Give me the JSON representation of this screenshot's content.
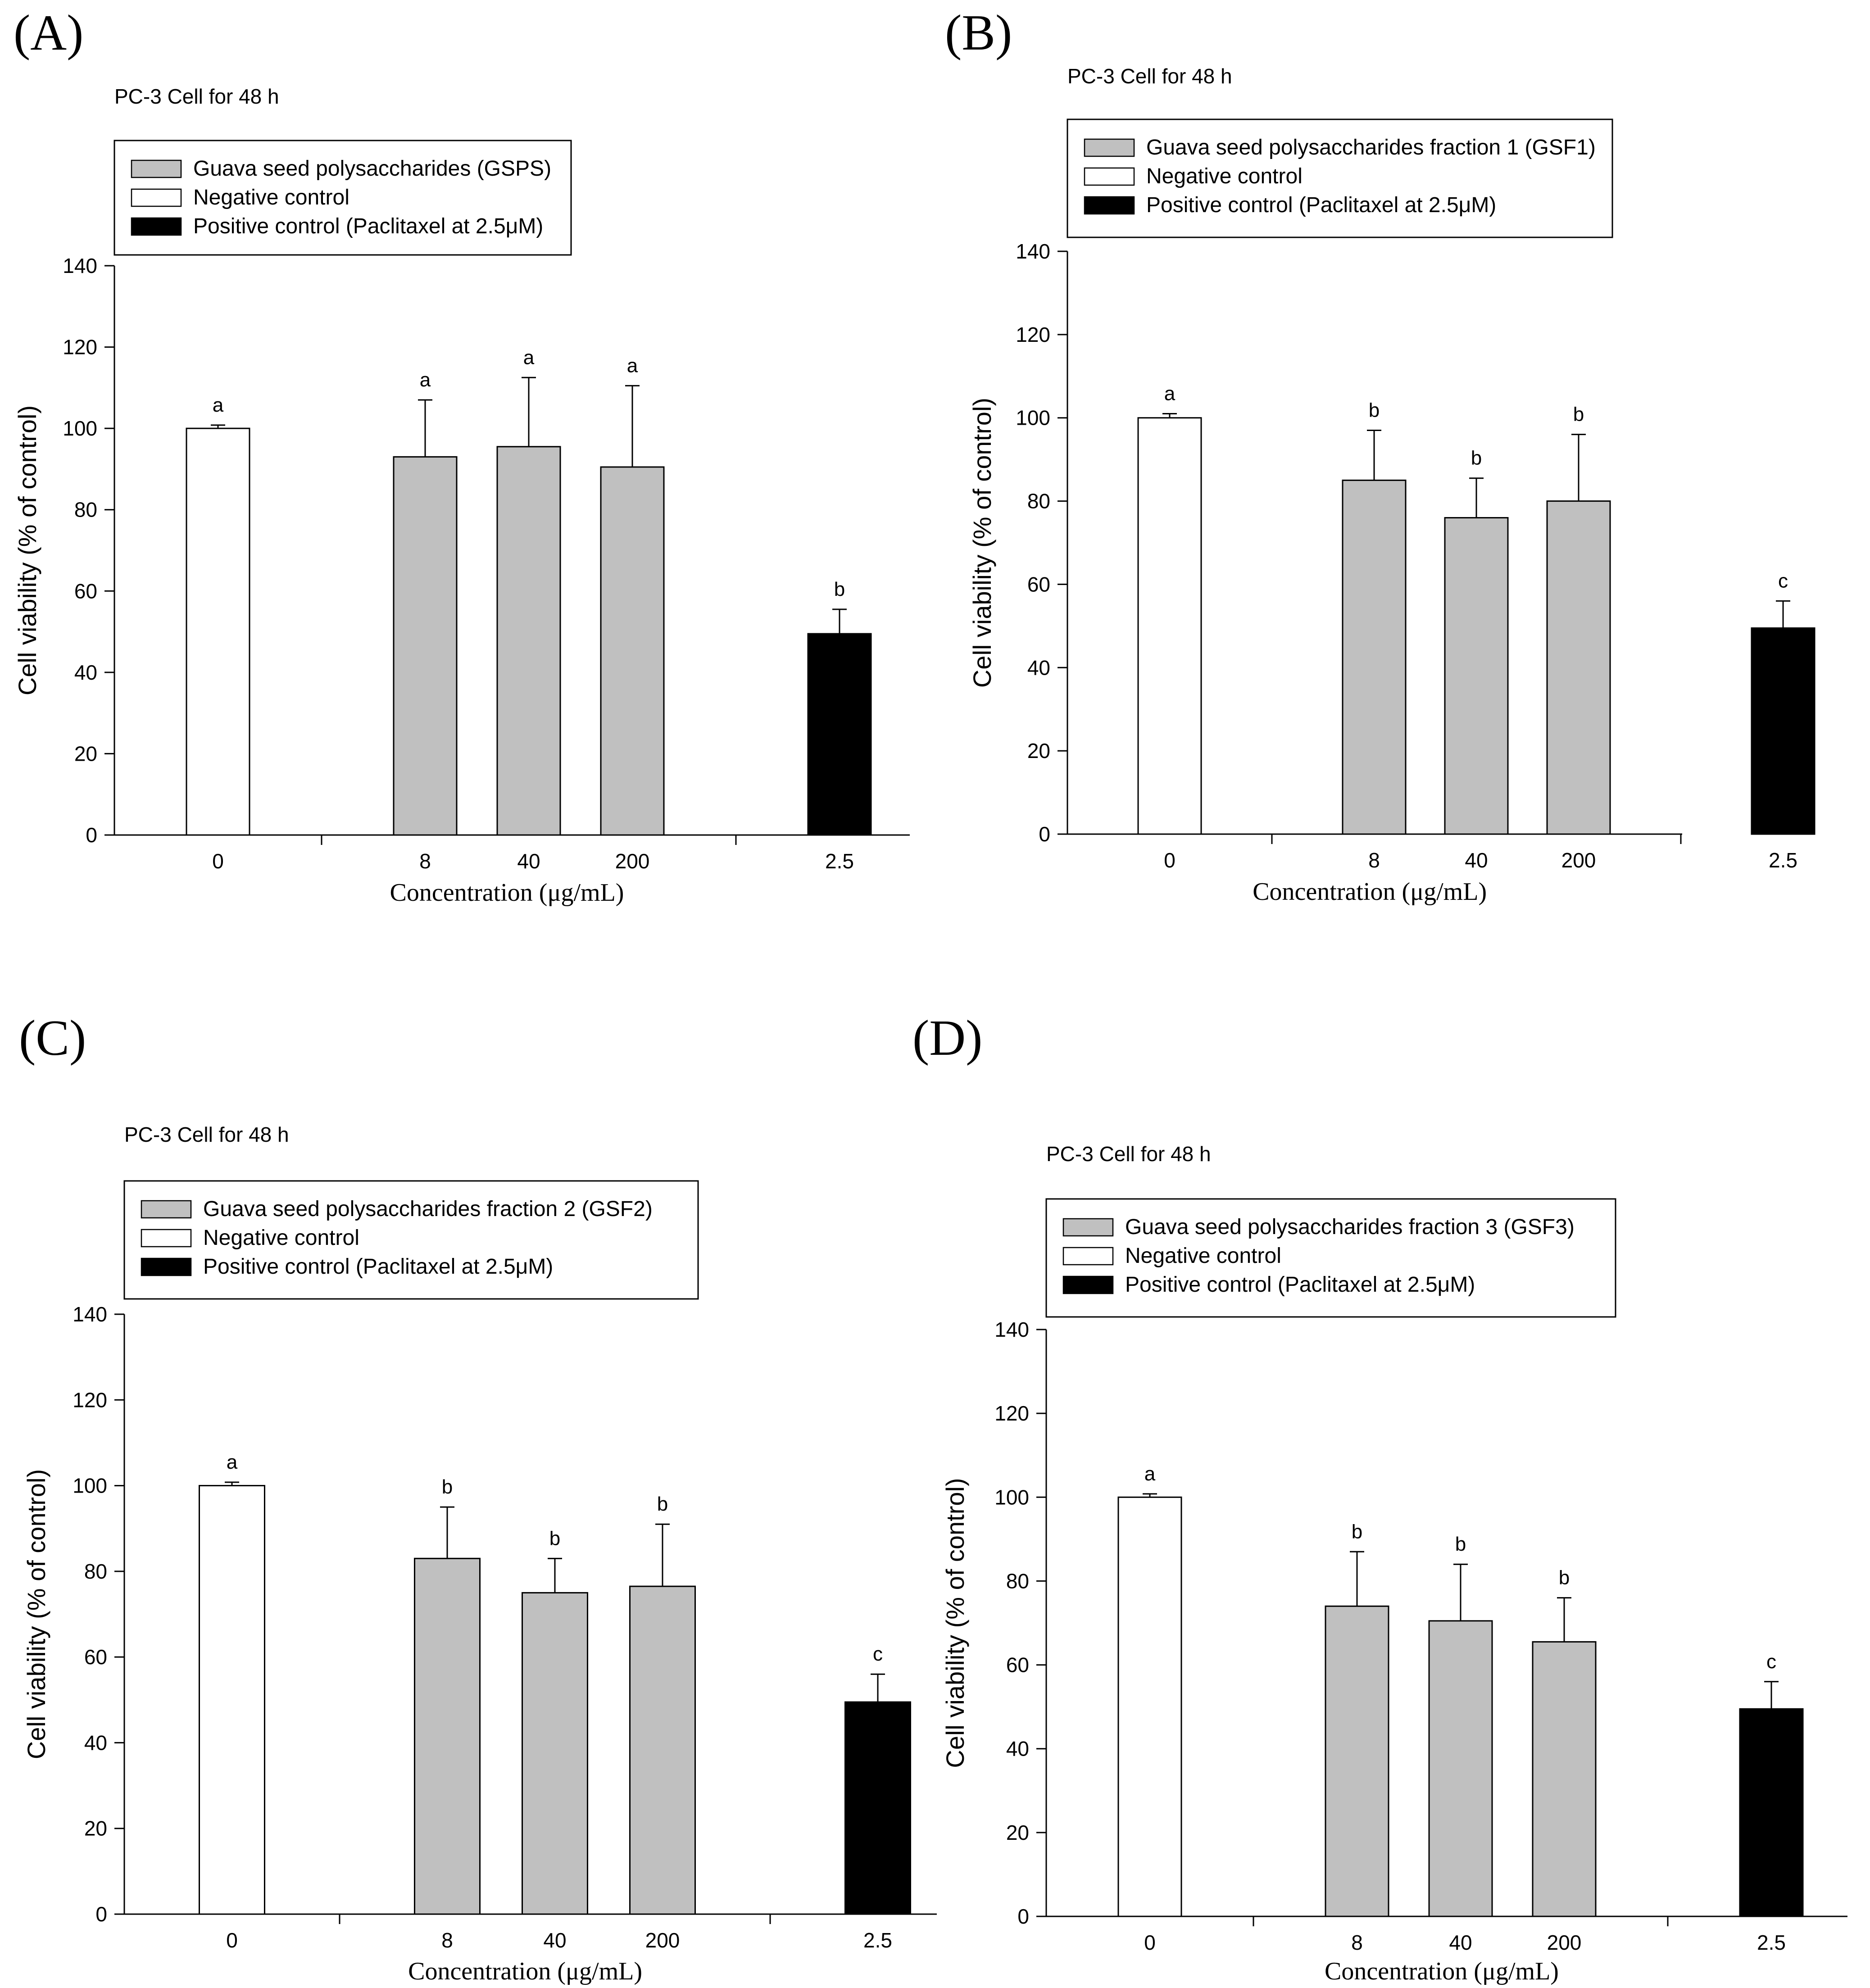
{
  "colors": {
    "sample_fill": "#c0c0c0",
    "negative_fill": "#ffffff",
    "positive_fill": "#000000",
    "line": "#000000"
  },
  "chart_data": [
    {
      "type": "bar",
      "panel": "(A)",
      "title": "PC-3 Cell for 48 h",
      "xlabel": "Concentration (μg/mL)",
      "ylabel": "Cell viability (% of control)",
      "ylim": [
        0,
        140
      ],
      "yticks": [
        0,
        20,
        40,
        60,
        80,
        100,
        120,
        140
      ],
      "grid": false,
      "legend_position": "top-left",
      "legend": [
        {
          "label": "Guava seed polysaccharides (GSPS)",
          "kind": "sample"
        },
        {
          "label": "Negative control",
          "kind": "negative"
        },
        {
          "label": "Positive control (Paclitaxel at 2.5μM)",
          "kind": "positive"
        }
      ],
      "categories": [
        "0",
        "8",
        "40",
        "200",
        "2.5"
      ],
      "values": [
        100,
        93,
        95.5,
        90.5,
        49.5
      ],
      "errors": [
        0.8,
        14,
        17,
        20,
        6
      ],
      "significance": [
        "a",
        "a",
        "a",
        "a",
        "b"
      ],
      "kinds": [
        "negative",
        "sample",
        "sample",
        "sample",
        "positive"
      ]
    },
    {
      "type": "bar",
      "panel": "(B)",
      "title": "PC-3 Cell for 48 h",
      "xlabel": "Concentration (μg/mL)",
      "ylabel": "Cell viability (% of control)",
      "ylim": [
        0,
        140
      ],
      "yticks": [
        0,
        20,
        40,
        60,
        80,
        100,
        120,
        140
      ],
      "grid": false,
      "legend_position": "top-left",
      "legend": [
        {
          "label": "Guava seed polysaccharides fraction 1 (GSF1)",
          "kind": "sample"
        },
        {
          "label": "Negative control",
          "kind": "negative"
        },
        {
          "label": "Positive control (Paclitaxel at 2.5μM)",
          "kind": "positive"
        }
      ],
      "categories": [
        "0",
        "8",
        "40",
        "200",
        "2.5"
      ],
      "values": [
        100,
        85,
        76,
        80,
        49.5
      ],
      "errors": [
        1,
        12,
        9.5,
        16,
        6.5
      ],
      "significance": [
        "a",
        "b",
        "b",
        "b",
        "c"
      ],
      "kinds": [
        "negative",
        "sample",
        "sample",
        "sample",
        "positive"
      ]
    },
    {
      "type": "bar",
      "panel": "(C)",
      "title": "PC-3 Cell for 48 h",
      "xlabel": "Concentration (μg/mL)",
      "ylabel": "Cell viability (% of control)",
      "ylim": [
        0,
        140
      ],
      "yticks": [
        0,
        20,
        40,
        60,
        80,
        100,
        120,
        140
      ],
      "grid": false,
      "legend_position": "top-left",
      "legend": [
        {
          "label": "Guava seed polysaccharides fraction 2 (GSF2)",
          "kind": "sample"
        },
        {
          "label": "Negative control",
          "kind": "negative"
        },
        {
          "label": "Positive control (Paclitaxel at 2.5μM)",
          "kind": "positive"
        }
      ],
      "categories": [
        "0",
        "8",
        "40",
        "200",
        "2.5"
      ],
      "values": [
        100,
        83,
        75,
        76.5,
        49.5
      ],
      "errors": [
        0.8,
        12,
        8,
        14.5,
        6.5
      ],
      "significance": [
        "a",
        "b",
        "b",
        "b",
        "c"
      ],
      "kinds": [
        "negative",
        "sample",
        "sample",
        "sample",
        "positive"
      ]
    },
    {
      "type": "bar",
      "panel": "(D)",
      "title": "PC-3 Cell for 48 h",
      "xlabel": "Concentration (μg/mL)",
      "ylabel": "Cell viability (% of control)",
      "ylim": [
        0,
        140
      ],
      "yticks": [
        0,
        20,
        40,
        60,
        80,
        100,
        120,
        140
      ],
      "grid": false,
      "legend_position": "top-left",
      "legend": [
        {
          "label": "Guava seed polysaccharides fraction 3 (GSF3)",
          "kind": "sample"
        },
        {
          "label": "Negative control",
          "kind": "negative"
        },
        {
          "label": "Positive control (Paclitaxel at 2.5μM)",
          "kind": "positive"
        }
      ],
      "categories": [
        "0",
        "8",
        "40",
        "200",
        "2.5"
      ],
      "values": [
        100,
        74,
        70.5,
        65.5,
        49.5
      ],
      "errors": [
        0.8,
        13,
        13.5,
        10.5,
        6.5
      ],
      "significance": [
        "a",
        "b",
        "b",
        "b",
        "c"
      ],
      "kinds": [
        "negative",
        "sample",
        "sample",
        "sample",
        "positive"
      ]
    }
  ]
}
